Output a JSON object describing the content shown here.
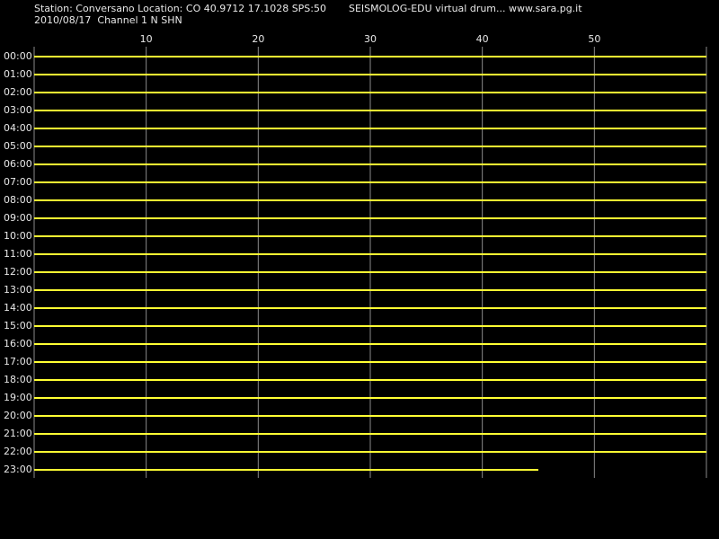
{
  "chart_data": {
    "type": "drum",
    "title": "Station: Conversano Location: CO 40.9712 17.1028 SPS:50",
    "subtitle": "2010/08/17  Channel 1 N SHN",
    "annotation": "SEISMOLOG-EDU virtual drum... www.sara.pg.it",
    "categories": [
      "00:00",
      "01:00",
      "02:00",
      "03:00",
      "04:00",
      "05:00",
      "06:00",
      "07:00",
      "08:00",
      "09:00",
      "10:00",
      "11:00",
      "12:00",
      "13:00",
      "14:00",
      "15:00",
      "16:00",
      "17:00",
      "18:00",
      "19:00",
      "20:00",
      "21:00",
      "22:00",
      "23:00"
    ],
    "values": [
      60,
      60,
      60,
      60,
      60,
      60,
      60,
      60,
      60,
      60,
      60,
      60,
      60,
      60,
      60,
      60,
      60,
      60,
      60,
      60,
      60,
      60,
      60,
      45
    ],
    "xlim": [
      0,
      60
    ],
    "xticks": [
      10,
      20,
      30,
      40,
      50
    ],
    "grid": true,
    "color": "#ffff33"
  }
}
